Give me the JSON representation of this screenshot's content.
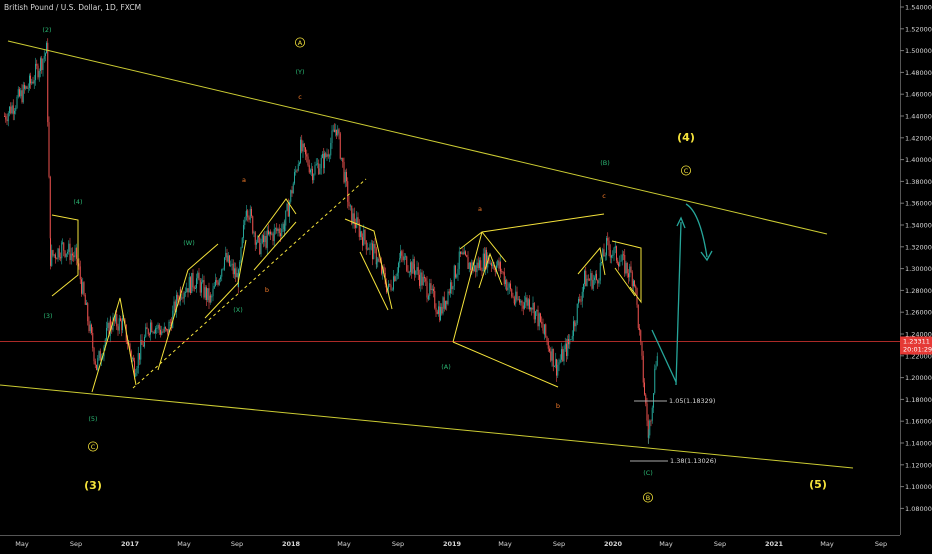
{
  "header": {
    "title": "British Pound / U.S. Dollar, 1D, FXCM"
  },
  "price_tag": {
    "value": "1.23311",
    "time": "20:01:29",
    "color": "#e53935"
  },
  "fib_labels": [
    "1.05(1.18329)",
    "1.38(1.13026)"
  ],
  "colors": {
    "background": "#000000",
    "up": "#26a69a",
    "down": "#ef5350",
    "trend": "#cccc33",
    "pattern": "#f5e33b",
    "projection": "#26a69a",
    "price_line": "#e53935",
    "axis_text": "#d8d8d8",
    "label_green": "#2bb673",
    "label_orange": "#f57c2a",
    "label_yellow": "#f5e33b"
  },
  "wave_labels": [
    {
      "text": "(2)",
      "color": "green"
    },
    {
      "text": "(4)",
      "color": "green"
    },
    {
      "text": "(3)",
      "color": "green"
    },
    {
      "text": "(5)",
      "color": "green"
    },
    {
      "text": "C",
      "color": "yellow",
      "circled": true
    },
    {
      "text": "(3)",
      "color": "yellow",
      "big": true
    },
    {
      "text": "(W)",
      "color": "green"
    },
    {
      "text": "(X)",
      "color": "green"
    },
    {
      "text": "A",
      "color": "yellow",
      "circled": true
    },
    {
      "text": "(Y)",
      "color": "green"
    },
    {
      "text": "c",
      "color": "orange"
    },
    {
      "text": "a",
      "color": "orange"
    },
    {
      "text": "b",
      "color": "orange"
    },
    {
      "text": "a",
      "color": "orange"
    },
    {
      "text": "b",
      "color": "orange"
    },
    {
      "text": "c",
      "color": "orange"
    },
    {
      "text": "(A)",
      "color": "green"
    },
    {
      "text": "(B)",
      "color": "green"
    },
    {
      "text": "(C)",
      "color": "green"
    },
    {
      "text": "B",
      "color": "yellow",
      "circled": true
    },
    {
      "text": "(4)",
      "color": "yellow",
      "big": true
    },
    {
      "text": "C",
      "color": "yellow",
      "circled": true
    },
    {
      "text": "(5)",
      "color": "yellow",
      "big": true
    }
  ],
  "chart_data": {
    "type": "candlestick",
    "title": "British Pound / U.S. Dollar, 1D, FXCM",
    "xlabel": "",
    "ylabel": "",
    "ylim": [
      1.07,
      1.55
    ],
    "x_ticks": [
      "May",
      "Sep",
      "2017",
      "May",
      "Sep",
      "2018",
      "May",
      "Sep",
      "2019",
      "May",
      "Sep",
      "2020",
      "May",
      "Sep",
      "2021",
      "May",
      "Sep"
    ],
    "y_ticks": [
      "1.54000",
      "1.52000",
      "1.50000",
      "1.48000",
      "1.46000",
      "1.44000",
      "1.42000",
      "1.40000",
      "1.38000",
      "1.36000",
      "1.34000",
      "1.32000",
      "1.30000",
      "1.28000",
      "1.26000",
      "1.24000",
      "1.22000",
      "1.20000",
      "1.18000",
      "1.16000",
      "1.14000",
      "1.12000",
      "1.10000",
      "1.08000"
    ],
    "grid": false,
    "last_price": 1.23311,
    "series": [
      {
        "values": [
          [
            "2016-05",
            1.44
          ],
          [
            "2016-06",
            1.47
          ],
          [
            "2016-06-23",
            1.5
          ],
          [
            "2016-07",
            1.31
          ],
          [
            "2016-08",
            1.32
          ],
          [
            "2016-09",
            1.31
          ],
          [
            "2016-10",
            1.21
          ],
          [
            "2016-11",
            1.25
          ],
          [
            "2016-12",
            1.25
          ],
          [
            "2017-01",
            1.21
          ],
          [
            "2017-02",
            1.25
          ],
          [
            "2017-03",
            1.24
          ],
          [
            "2017-04",
            1.28
          ],
          [
            "2017-05",
            1.29
          ],
          [
            "2017-06",
            1.27
          ],
          [
            "2017-07",
            1.31
          ],
          [
            "2017-08",
            1.29
          ],
          [
            "2017-09",
            1.36
          ],
          [
            "2017-10",
            1.32
          ],
          [
            "2017-11",
            1.33
          ],
          [
            "2017-12",
            1.34
          ],
          [
            "2018-01",
            1.41
          ],
          [
            "2018-02",
            1.39
          ],
          [
            "2018-03",
            1.4
          ],
          [
            "2018-04",
            1.43
          ],
          [
            "2018-05",
            1.35
          ],
          [
            "2018-06",
            1.33
          ],
          [
            "2018-07",
            1.31
          ],
          [
            "2018-08",
            1.28
          ],
          [
            "2018-09",
            1.31
          ],
          [
            "2018-10",
            1.3
          ],
          [
            "2018-11",
            1.28
          ],
          [
            "2018-12",
            1.26
          ],
          [
            "2019-01",
            1.31
          ],
          [
            "2019-02",
            1.3
          ],
          [
            "2019-03",
            1.31
          ],
          [
            "2019-04",
            1.3
          ],
          [
            "2019-05",
            1.27
          ],
          [
            "2019-06",
            1.27
          ],
          [
            "2019-07",
            1.24
          ],
          [
            "2019-08",
            1.21
          ],
          [
            "2019-09",
            1.23
          ],
          [
            "2019-10",
            1.29
          ],
          [
            "2019-11",
            1.29
          ],
          [
            "2019-12",
            1.32
          ],
          [
            "2020-01",
            1.31
          ],
          [
            "2020-02",
            1.29
          ],
          [
            "2020-03-20",
            1.145
          ],
          [
            "2020-04",
            1.24
          ]
        ]
      }
    ],
    "annotations": [
      {
        "type": "fib",
        "label": "1.05(1.18329)",
        "value": 1.18329
      },
      {
        "type": "fib",
        "label": "1.38(1.13026)",
        "value": 1.13026
      }
    ]
  }
}
